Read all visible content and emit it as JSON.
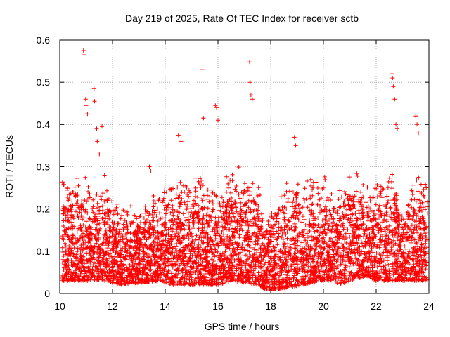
{
  "chart_data": {
    "type": "scatter",
    "title": "Day 219 of 2025, Rate Of TEC Index for receiver sctb",
    "xlabel": "GPS time / hours",
    "ylabel": "ROTI / TECUs",
    "xlim": [
      10,
      24
    ],
    "ylim": [
      0,
      0.6
    ],
    "x_ticks": [
      10,
      12,
      14,
      16,
      18,
      20,
      22,
      24
    ],
    "y_ticks": [
      0,
      0.1,
      0.2,
      0.3,
      0.4,
      0.5,
      0.6
    ],
    "x_tick_labels": [
      "10",
      "12",
      "14",
      "16",
      "18",
      "20",
      "22",
      "24"
    ],
    "y_tick_labels": [
      "0",
      "0.1",
      "0.2",
      "0.3",
      "0.4",
      "0.5",
      "0.6"
    ],
    "grid": true,
    "marker": "plus",
    "color": "#ff0000",
    "series": [
      {
        "x": [
          10.9,
          10.92,
          10.98,
          11.0,
          11.05,
          11.3,
          11.32,
          11.4,
          11.42,
          11.5,
          11.6,
          11.7,
          15.4,
          15.45,
          15.9,
          15.95,
          16.0,
          17.2,
          17.22,
          17.25,
          17.3,
          22.6,
          22.62,
          22.65,
          22.7,
          22.75,
          22.8,
          23.5,
          23.55,
          23.6,
          18.9,
          18.95,
          14.5,
          14.6,
          13.4,
          13.45
        ],
        "y": [
          0.575,
          0.565,
          0.46,
          0.445,
          0.425,
          0.485,
          0.455,
          0.39,
          0.36,
          0.33,
          0.395,
          0.28,
          0.53,
          0.415,
          0.445,
          0.44,
          0.41,
          0.548,
          0.5,
          0.47,
          0.46,
          0.52,
          0.51,
          0.49,
          0.46,
          0.4,
          0.39,
          0.42,
          0.4,
          0.38,
          0.37,
          0.35,
          0.375,
          0.36,
          0.3,
          0.29
        ]
      }
    ],
    "density_profile": {
      "x_break": [
        10.0,
        10.3,
        11.8,
        12.2,
        13.8,
        14.2,
        15.4,
        16.0,
        16.5,
        17.5,
        17.8,
        18.3,
        20.0,
        20.4,
        20.6,
        21.0,
        21.6,
        22.0,
        22.8,
        23.0,
        23.5,
        24.0
      ],
      "band_max": [
        0.28,
        0.3,
        0.26,
        0.22,
        0.24,
        0.28,
        0.3,
        0.26,
        0.32,
        0.28,
        0.2,
        0.26,
        0.3,
        0.24,
        0.26,
        0.3,
        0.28,
        0.3,
        0.3,
        0.2,
        0.3,
        0.28
      ],
      "band_min": [
        0.03,
        0.03,
        0.03,
        0.02,
        0.03,
        0.02,
        0.02,
        0.02,
        0.03,
        0.02,
        0.01,
        0.01,
        0.03,
        0.03,
        0.02,
        0.03,
        0.04,
        0.03,
        0.03,
        0.03,
        0.03,
        0.03
      ]
    }
  }
}
